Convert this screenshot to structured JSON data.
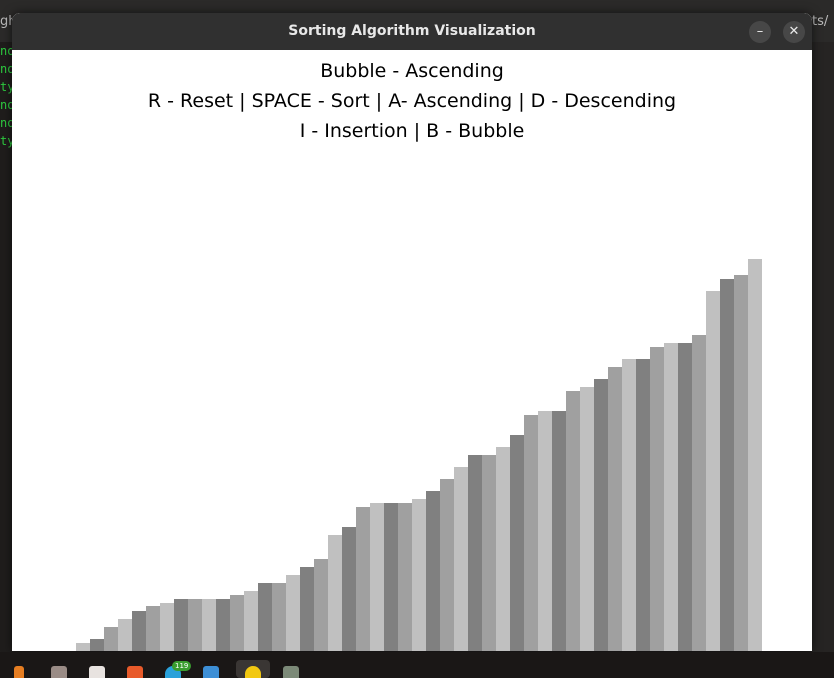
{
  "window": {
    "title": "Sorting Algorithm Visualization",
    "minimize_glyph": "–",
    "close_glyph": "✕"
  },
  "info": {
    "line1": "Bubble - Ascending",
    "line2": "R - Reset | SPACE - Sort | A- Ascending | D - Descending",
    "line3": "I - Insertion | B - Bubble"
  },
  "bars": {
    "colors": [
      "#808080",
      "#a0a0a0",
      "#c0c0c0"
    ],
    "values": [
      0,
      0,
      0,
      0,
      0,
      8,
      12,
      24,
      32,
      40,
      45,
      48,
      52,
      52,
      52,
      52,
      56,
      60,
      68,
      68,
      76,
      84,
      92,
      116,
      124,
      144,
      148,
      148,
      148,
      152,
      160,
      172,
      184,
      196,
      196,
      204,
      216,
      236,
      240,
      240,
      260,
      264,
      272,
      284,
      292,
      292,
      304,
      308,
      308,
      316,
      360,
      372,
      376,
      392
    ]
  },
  "background": {
    "terminal_lines": [
      "no",
      "no",
      "ty",
      "no",
      "no",
      "ty"
    ],
    "left_edge_text": "gh",
    "right_edge_text": "ts/",
    "taskbar_badge": "119",
    "taskbar_icons": [
      "vlc-icon",
      "files-icon",
      "text-editor-icon",
      "brave-icon",
      "telegram-icon",
      "document-icon",
      "python-icon",
      "trash-icon"
    ]
  }
}
